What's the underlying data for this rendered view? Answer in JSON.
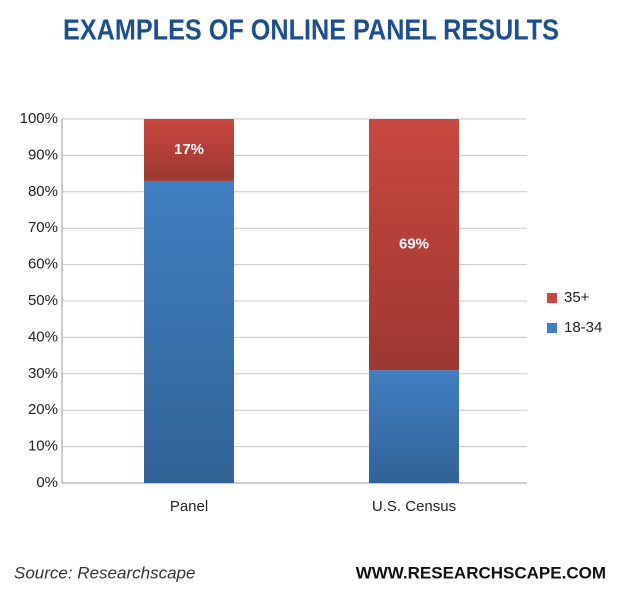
{
  "chart_data": {
    "type": "stacked_bar",
    "title": "EXAMPLES OF ONLINE PANEL RESULTS",
    "categories": [
      "Panel",
      "U.S. Census"
    ],
    "series": [
      {
        "name": "18-34",
        "color": "#3f7fc1",
        "values": [
          83,
          31
        ]
      },
      {
        "name": "35+",
        "color": "#c9473f",
        "values": [
          17,
          69
        ],
        "value_labels": [
          "17%",
          "69%"
        ]
      }
    ],
    "ylim": [
      0,
      100
    ],
    "yticks": [
      {
        "value": 0,
        "label": "0%"
      },
      {
        "value": 10,
        "label": "10%"
      },
      {
        "value": 20,
        "label": "20%"
      },
      {
        "value": 30,
        "label": "30%"
      },
      {
        "value": 40,
        "label": "40%"
      },
      {
        "value": 50,
        "label": "50%"
      },
      {
        "value": 60,
        "label": "60%"
      },
      {
        "value": 70,
        "label": "70%"
      },
      {
        "value": 80,
        "label": "80%"
      },
      {
        "value": 90,
        "label": "90%"
      },
      {
        "value": 100,
        "label": "100%"
      }
    ],
    "grid": true,
    "legend": "right",
    "source": "Source: Researchscape",
    "website": "WWW.RESEARCHSCAPE.COM"
  }
}
